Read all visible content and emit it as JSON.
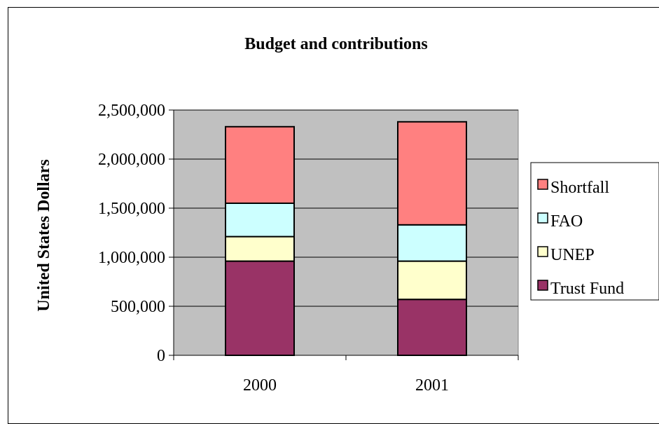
{
  "chart_data": {
    "type": "bar",
    "stacked": true,
    "title": "Budget and contributions",
    "xlabel": "",
    "ylabel": "United States Dollars",
    "categories": [
      "2000",
      "2001"
    ],
    "ylim": [
      0,
      2500000
    ],
    "yticks": [
      0,
      500000,
      1000000,
      1500000,
      2000000,
      2500000
    ],
    "ytick_labels": [
      "0",
      "500,000",
      "1,000,000",
      "1,500,000",
      "2,000,000",
      "2,500,000"
    ],
    "grid": true,
    "legend_position": "right",
    "series": [
      {
        "name": "Trust Fund",
        "values": [
          960000,
          570000
        ],
        "color": "#993366"
      },
      {
        "name": "UNEP",
        "values": [
          250000,
          390000
        ],
        "color": "#ffffcc"
      },
      {
        "name": "FAO",
        "values": [
          340000,
          370000
        ],
        "color": "#ccffff"
      },
      {
        "name": "Shortfall",
        "values": [
          780000,
          1050000
        ],
        "color": "#ff8080"
      }
    ],
    "plot_background": "#c0c0c0"
  }
}
